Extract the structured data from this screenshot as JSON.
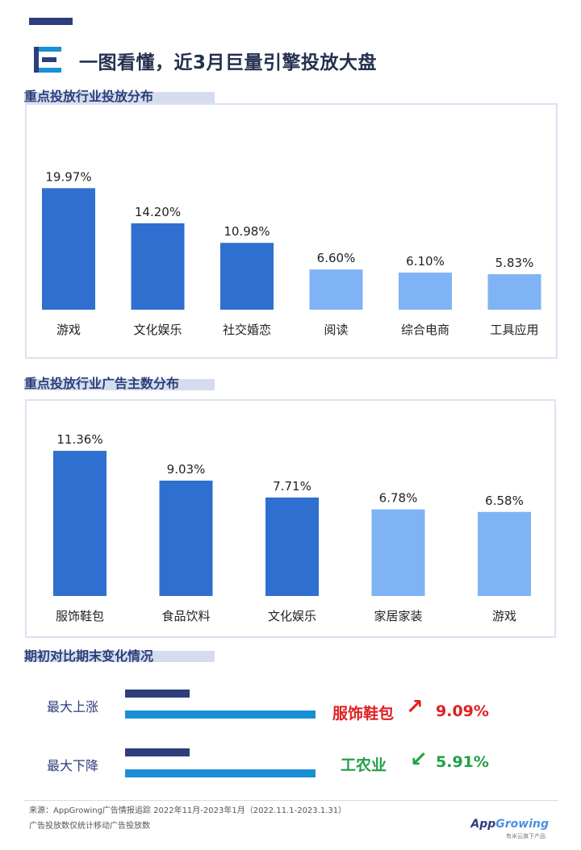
{
  "header": {
    "title": "一图看懂，近3月巨量引擎投放大盘"
  },
  "chart_data": [
    {
      "type": "bar",
      "title": "重点投放行业投放分布",
      "categories": [
        "游戏",
        "文化娱乐",
        "社交婚恋",
        "阅读",
        "综合电商",
        "工具应用"
      ],
      "values": [
        19.97,
        14.2,
        10.98,
        6.6,
        6.1,
        5.83
      ],
      "value_labels": [
        "19.97%",
        "14.20%",
        "10.98%",
        "6.60%",
        "6.10%",
        "5.83%"
      ],
      "colors": [
        "#2f6fd0",
        "#2f6fd0",
        "#2f6fd0",
        "#7fb3f5",
        "#7fb3f5",
        "#7fb3f5"
      ],
      "ylim": [
        0,
        22
      ]
    },
    {
      "type": "bar",
      "title": "重点投放行业广告主数分布",
      "categories": [
        "服饰鞋包",
        "食品饮料",
        "文化娱乐",
        "家居家装",
        "游戏"
      ],
      "values": [
        11.36,
        9.03,
        7.71,
        6.78,
        6.58
      ],
      "value_labels": [
        "11.36%",
        "9.03%",
        "7.71%",
        "6.78%",
        "6.58%"
      ],
      "colors": [
        "#2f6fd0",
        "#2f6fd0",
        "#2f6fd0",
        "#7fb3f5",
        "#7fb3f5"
      ],
      "ylim": [
        0,
        12.5
      ]
    }
  ],
  "change": {
    "title": "期初对比期末变化情况",
    "rows": [
      {
        "label": "最大上涨",
        "industry": "服饰鞋包",
        "value": "9.09%",
        "direction": "up",
        "color": "#e02020",
        "period_start": 0.34,
        "period_end": 1.0
      },
      {
        "label": "最大下降",
        "industry": "工农业",
        "value": "5.91%",
        "direction": "down",
        "color": "#22a046",
        "period_start": 0.34,
        "period_end": 1.0
      }
    ],
    "colors": {
      "start_bar": "#2d3e7a",
      "end_bar": "#1a8fd6"
    },
    "arrows": {
      "up": "↗",
      "down": "↙"
    }
  },
  "footer": {
    "source": "来源：AppGrowing广告情报追踪 2022年11月-2023年1月（2022.11.1-2023.1.31）",
    "note": "广告投放数仅统计移动广告投放数",
    "brand_a": "App",
    "brand_b": "Growing",
    "brand_sub": "有米云旗下产品"
  }
}
